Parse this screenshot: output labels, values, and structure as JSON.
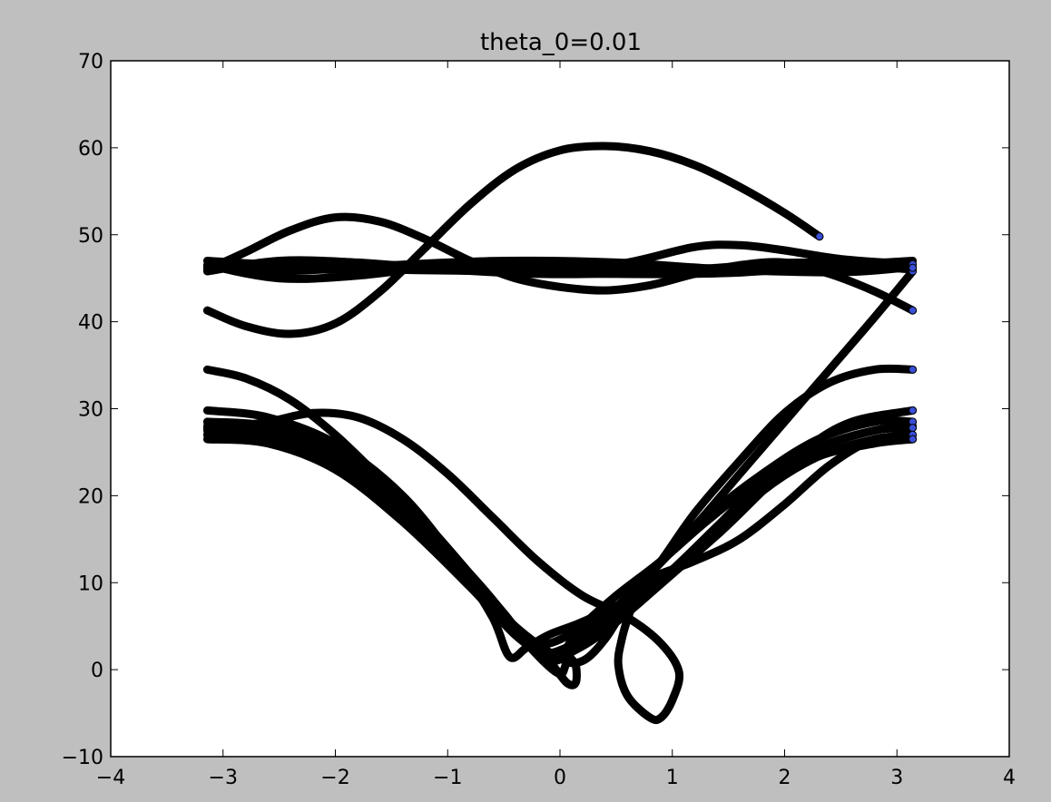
{
  "chart_data": {
    "type": "scatter",
    "title": "theta_0=0.01",
    "xlabel": "",
    "ylabel": "",
    "xlim": [
      -4,
      4
    ],
    "ylim": [
      -10,
      70
    ],
    "xticks": [
      -4,
      -3,
      -2,
      -1,
      0,
      1,
      2,
      3,
      4
    ],
    "xtick_labels": [
      "−4",
      "−3",
      "−2",
      "−1",
      "0",
      "1",
      "2",
      "3",
      "4"
    ],
    "yticks": [
      -10,
      0,
      10,
      20,
      30,
      40,
      50,
      60,
      70
    ],
    "ytick_labels": [
      "−10",
      "0",
      "10",
      "20",
      "30",
      "40",
      "50",
      "60",
      "70"
    ],
    "grid": false,
    "marker_edge_color": "#000000",
    "marker_face_color": "#3a4fd6",
    "series": [
      {
        "x": [
          -3.14,
          -2.8,
          -2.4,
          -2.0,
          -1.6,
          -1.2,
          -0.8,
          -0.4,
          0.0,
          0.4,
          0.8,
          1.2,
          1.6,
          2.0,
          2.31
        ],
        "y": [
          41.3,
          39.5,
          38.6,
          39.8,
          43.5,
          48.5,
          53.5,
          57.5,
          59.7,
          60.2,
          59.6,
          58.0,
          55.5,
          52.5,
          49.8
        ]
      },
      {
        "x": [
          -3.14,
          -2.8,
          -2.4,
          -2.0,
          -1.6,
          -1.2,
          -0.8,
          -0.4,
          0.0,
          0.4,
          0.8,
          1.2,
          1.6,
          2.0,
          2.4,
          2.8,
          3.14
        ],
        "y": [
          46.0,
          48.0,
          50.5,
          52.0,
          51.5,
          49.5,
          47.0,
          45.0,
          44.0,
          43.6,
          44.2,
          45.5,
          46.5,
          46.8,
          45.5,
          43.5,
          41.3
        ]
      },
      {
        "x": [
          -3.14,
          -2.5,
          -1.8,
          -1.0,
          -0.4,
          0.0,
          0.6,
          1.2,
          1.6,
          2.0,
          2.5,
          3.14
        ],
        "y": [
          46.5,
          45.0,
          45.3,
          46.5,
          46.5,
          46.0,
          46.8,
          48.6,
          48.8,
          48.2,
          47.2,
          46.6
        ]
      },
      {
        "x": [
          -3.14,
          -2.5,
          -1.8,
          -1.0,
          -0.2,
          0.6,
          1.4,
          2.2,
          3.14
        ],
        "y": [
          45.8,
          47.0,
          46.8,
          46.0,
          45.5,
          45.6,
          46.2,
          46.8,
          46.0
        ]
      },
      {
        "x": [
          -3.14,
          -2.5,
          -1.5,
          -0.5,
          0.5,
          1.5,
          2.5,
          3.14
        ],
        "y": [
          47.0,
          46.5,
          46.0,
          45.8,
          45.5,
          45.6,
          46.5,
          47.0
        ]
      },
      {
        "x": [
          -3.14,
          -2.5,
          -1.5,
          -0.5,
          0.5,
          1.5,
          2.5,
          3.14
        ],
        "y": [
          46.3,
          45.8,
          46.5,
          47.0,
          46.8,
          46.0,
          45.7,
          46.3
        ]
      },
      {
        "x": [
          -3.14,
          -2.2,
          -1.4,
          -0.6,
          0.2,
          1.0,
          1.8,
          2.6,
          3.14
        ],
        "y": [
          46.2,
          46.0,
          46.2,
          46.3,
          46.1,
          46.0,
          46.2,
          46.3,
          46.2
        ]
      },
      {
        "x": [
          -3.14,
          -2.8,
          -2.4,
          -2.0,
          -1.6,
          -1.2,
          -0.8,
          -0.4,
          0.0,
          0.2,
          0.4,
          0.6,
          0.9,
          1.2,
          1.6,
          2.0,
          2.4,
          2.8,
          3.14
        ],
        "y": [
          34.5,
          33.5,
          31.0,
          27.0,
          22.0,
          16.5,
          10.5,
          5.0,
          1.3,
          1.0,
          3.5,
          7.5,
          12.5,
          18.0,
          24.0,
          29.5,
          33.0,
          34.5,
          34.5
        ]
      },
      {
        "x": [
          -3.14,
          -2.6,
          -2.2,
          -1.8,
          -1.4,
          -1.0,
          -0.6,
          -0.2,
          0.2,
          0.6,
          0.9,
          1.06,
          1.0,
          0.9,
          0.8,
          0.6,
          0.52,
          0.55,
          0.62,
          0.7,
          0.8,
          1.2,
          1.6,
          2.0,
          2.4,
          2.8,
          3.14
        ],
        "y": [
          27.5,
          28.5,
          29.5,
          29.0,
          26.5,
          22.5,
          17.5,
          12.5,
          8.5,
          6.0,
          3.0,
          -0.3,
          -3.5,
          -5.5,
          -5.5,
          -3.0,
          0.5,
          3.5,
          6.5,
          9.0,
          10.5,
          12.5,
          15.0,
          19.0,
          23.5,
          26.5,
          26.5
        ]
      },
      {
        "x": [
          -3.14,
          -2.6,
          -2.0,
          -1.4,
          -0.9,
          -0.6,
          -0.45,
          -0.3,
          -0.1,
          0.2,
          0.6,
          1.0,
          1.4,
          1.8,
          2.2,
          2.6,
          3.14
        ],
        "y": [
          29.8,
          29.0,
          26.0,
          20.0,
          12.0,
          6.0,
          1.5,
          2.5,
          4.0,
          5.5,
          8.0,
          11.5,
          15.5,
          20.5,
          25.5,
          28.5,
          29.8
        ]
      },
      {
        "x": [
          -3.14,
          -2.6,
          -2.0,
          -1.4,
          -0.8,
          -0.4,
          -0.1,
          0.06,
          0.14,
          0.14,
          0.08,
          0.04,
          0.2,
          0.5,
          0.9,
          1.3,
          1.8,
          2.3,
          2.8,
          3.14
        ],
        "y": [
          28.5,
          28.0,
          25.5,
          19.5,
          11.0,
          4.5,
          1.0,
          -1.5,
          -1.5,
          0.5,
          1.5,
          2.0,
          5.0,
          8.5,
          12.5,
          17.5,
          22.5,
          26.5,
          28.5,
          28.5
        ]
      },
      {
        "x": [
          -3.14,
          -2.6,
          -2.0,
          -1.4,
          -0.8,
          -0.4,
          -0.15,
          0.0,
          0.05,
          0.1,
          0.3,
          0.6,
          1.0,
          1.4,
          1.8,
          2.3,
          2.8,
          3.14
        ],
        "y": [
          27.8,
          27.3,
          24.5,
          18.5,
          10.5,
          4.5,
          1.0,
          -0.5,
          0.5,
          2.0,
          4.0,
          7.0,
          11.5,
          16.5,
          21.5,
          25.5,
          27.5,
          27.8
        ]
      },
      {
        "x": [
          -3.14,
          -2.6,
          -2.0,
          -1.4,
          -0.8,
          -0.4,
          -0.2,
          -0.05,
          0.1,
          0.3,
          0.6,
          1.0,
          1.4,
          1.8,
          2.3,
          2.8,
          3.14
        ],
        "y": [
          27.0,
          26.5,
          23.5,
          17.5,
          10.0,
          4.5,
          2.0,
          1.0,
          2.0,
          3.5,
          6.5,
          11.0,
          15.5,
          20.5,
          24.5,
          26.5,
          27.0
        ]
      },
      {
        "x": [
          -3.14,
          -2.6,
          -2.0,
          -1.4,
          -0.8,
          -0.4,
          -0.15,
          0.05,
          0.3,
          0.6,
          1.0,
          1.4,
          1.8,
          2.3,
          2.8,
          3.14
        ],
        "y": [
          26.5,
          26.0,
          23.0,
          17.0,
          9.5,
          4.0,
          2.0,
          2.5,
          4.5,
          7.5,
          11.5,
          16.0,
          21.0,
          24.5,
          26.0,
          26.5
        ]
      },
      {
        "x": [
          -3.14,
          -2.6,
          -2.0,
          -1.4,
          -0.8,
          -0.5,
          -0.3,
          -0.1,
          0.2,
          0.5,
          0.9,
          1.3,
          1.8,
          2.3,
          2.8,
          3.14
        ],
        "y": [
          28.0,
          27.5,
          25.0,
          19.0,
          11.0,
          6.5,
          3.5,
          3.0,
          5.0,
          8.5,
          12.5,
          17.0,
          22.0,
          25.5,
          27.5,
          28.0
        ]
      },
      {
        "x": [
          0.0,
          0.4,
          0.8,
          1.2,
          1.6,
          2.0,
          2.4,
          2.8,
          3.14
        ],
        "y": [
          2.0,
          6.0,
          11.0,
          16.5,
          22.5,
          28.5,
          34.5,
          40.5,
          45.8
        ]
      }
    ],
    "endpoints": {
      "x": [
        3.14,
        3.14,
        3.14,
        3.14,
        3.14,
        3.14,
        3.14,
        3.14,
        3.14,
        3.14,
        2.31
      ],
      "y": [
        46.6,
        45.8,
        41.3,
        34.5,
        29.8,
        28.5,
        27.8,
        27.0,
        26.5,
        46.2,
        49.8
      ]
    }
  }
}
